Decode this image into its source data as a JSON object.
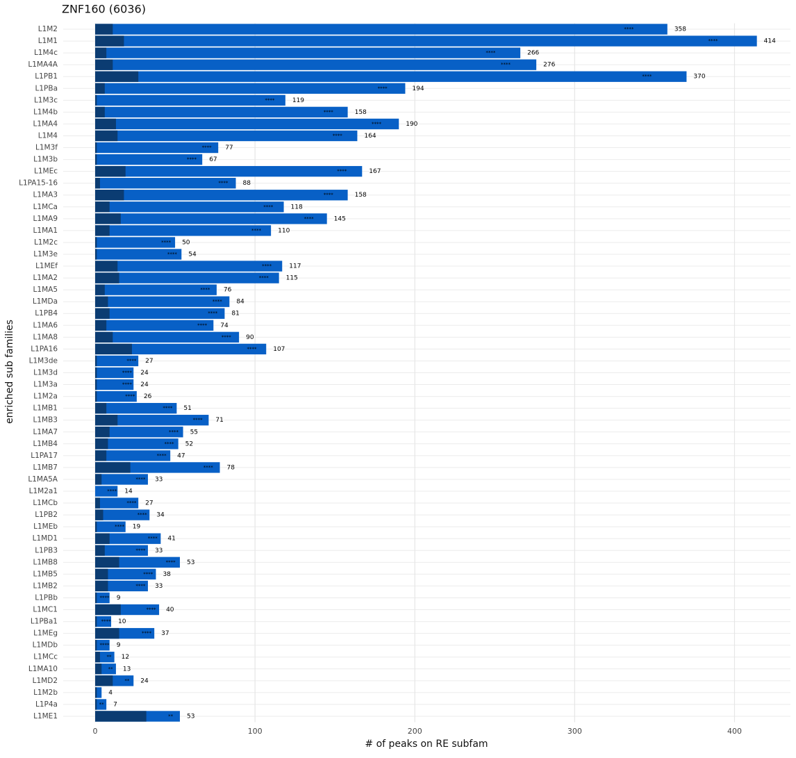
{
  "chart_data": {
    "type": "bar",
    "orientation": "horizontal",
    "title": "ZNF160 (6036)",
    "x_label": "# of peaks on RE subfam",
    "y_label": "enriched sub families",
    "categories": [
      "L1M2",
      "L1M1",
      "L1M4c",
      "L1MA4A",
      "L1PB1",
      "L1PBa",
      "L1M3c",
      "L1M4b",
      "L1MA4",
      "L1M4",
      "L1M3f",
      "L1M3b",
      "L1MEc",
      "L1PA15-16",
      "L1MA3",
      "L1MCa",
      "L1MA9",
      "L1MA1",
      "L1M2c",
      "L1M3e",
      "L1MEf",
      "L1MA2",
      "L1MA5",
      "L1MDa",
      "L1PB4",
      "L1MA6",
      "L1MA8",
      "L1PA16",
      "L1M3de",
      "L1M3d",
      "L1M3a",
      "L1M2a",
      "L1MB1",
      "L1MB3",
      "L1MA7",
      "L1MB4",
      "L1PA17",
      "L1MB7",
      "L1MA5A",
      "L1M2a1",
      "L1MCb",
      "L1PB2",
      "L1MEb",
      "L1MD1",
      "L1PB3",
      "L1MB8",
      "L1MB5",
      "L1MB2",
      "L1PBb",
      "L1MC1",
      "L1PBa1",
      "L1MEg",
      "L1MDb",
      "L1MCc",
      "L1MA10",
      "L1MD2",
      "L1M2b",
      "L1P4a",
      "L1ME1"
    ],
    "values": [
      358,
      414,
      266,
      276,
      370,
      194,
      119,
      158,
      190,
      164,
      77,
      67,
      167,
      88,
      158,
      118,
      145,
      110,
      50,
      54,
      117,
      115,
      76,
      84,
      81,
      74,
      90,
      107,
      27,
      24,
      24,
      26,
      51,
      71,
      55,
      52,
      47,
      78,
      33,
      14,
      27,
      34,
      19,
      41,
      33,
      53,
      38,
      33,
      9,
      40,
      10,
      37,
      9,
      12,
      13,
      24,
      4,
      7,
      53
    ],
    "overlap_values": [
      11,
      18,
      7,
      11,
      27,
      6,
      1,
      6,
      13,
      14,
      1,
      1,
      19,
      3,
      18,
      9,
      16,
      9,
      1,
      1,
      14,
      15,
      6,
      8,
      9,
      7,
      11,
      23,
      1,
      1,
      1,
      1,
      7,
      14,
      9,
      8,
      7,
      22,
      4,
      0,
      3,
      5,
      1,
      9,
      6,
      15,
      8,
      8,
      1,
      16,
      1,
      15,
      1,
      3,
      4,
      11,
      1,
      1,
      32
    ],
    "significance_labels": [
      "****",
      "****",
      "****",
      "****",
      "****",
      "****",
      "****",
      "****",
      "****",
      "****",
      "****",
      "****",
      "****",
      "****",
      "****",
      "****",
      "****",
      "****",
      "****",
      "****",
      "****",
      "****",
      "****",
      "****",
      "****",
      "****",
      "****",
      "****",
      "****",
      "****",
      "****",
      "****",
      "****",
      "****",
      "****",
      "****",
      "****",
      "****",
      "****",
      "****",
      "****",
      "****",
      "****",
      "****",
      "****",
      "****",
      "****",
      "****",
      "****",
      "****",
      "****",
      "****",
      "****",
      "**",
      "**",
      "**",
      null,
      "**",
      "**"
    ],
    "color": "#0860c6",
    "overlap_color": "#0b3c72",
    "xlim": [
      -20,
      435
    ],
    "xticks": [
      0,
      100,
      200,
      300,
      400
    ],
    "grid": true
  }
}
